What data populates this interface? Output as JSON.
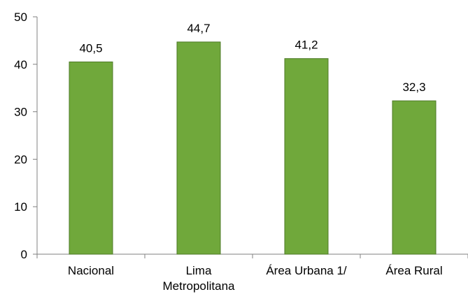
{
  "chart_data": {
    "type": "bar",
    "categories": [
      [
        "Nacional"
      ],
      [
        "Lima",
        "Metropolitana"
      ],
      [
        "Área Urbana 1/"
      ],
      [
        "Área Rural"
      ]
    ],
    "values": [
      40.5,
      44.7,
      41.2,
      32.3
    ],
    "value_labels": [
      "40,5",
      "44,7",
      "41,2",
      "32,3"
    ],
    "yticks": [
      0,
      10,
      20,
      30,
      40,
      50
    ],
    "ylim": [
      0,
      50
    ],
    "grid": false,
    "legend": "none",
    "colors": {
      "bar_fill": "#70A83B",
      "bar_stroke": "#4E7A27",
      "axis": "#808080"
    }
  }
}
